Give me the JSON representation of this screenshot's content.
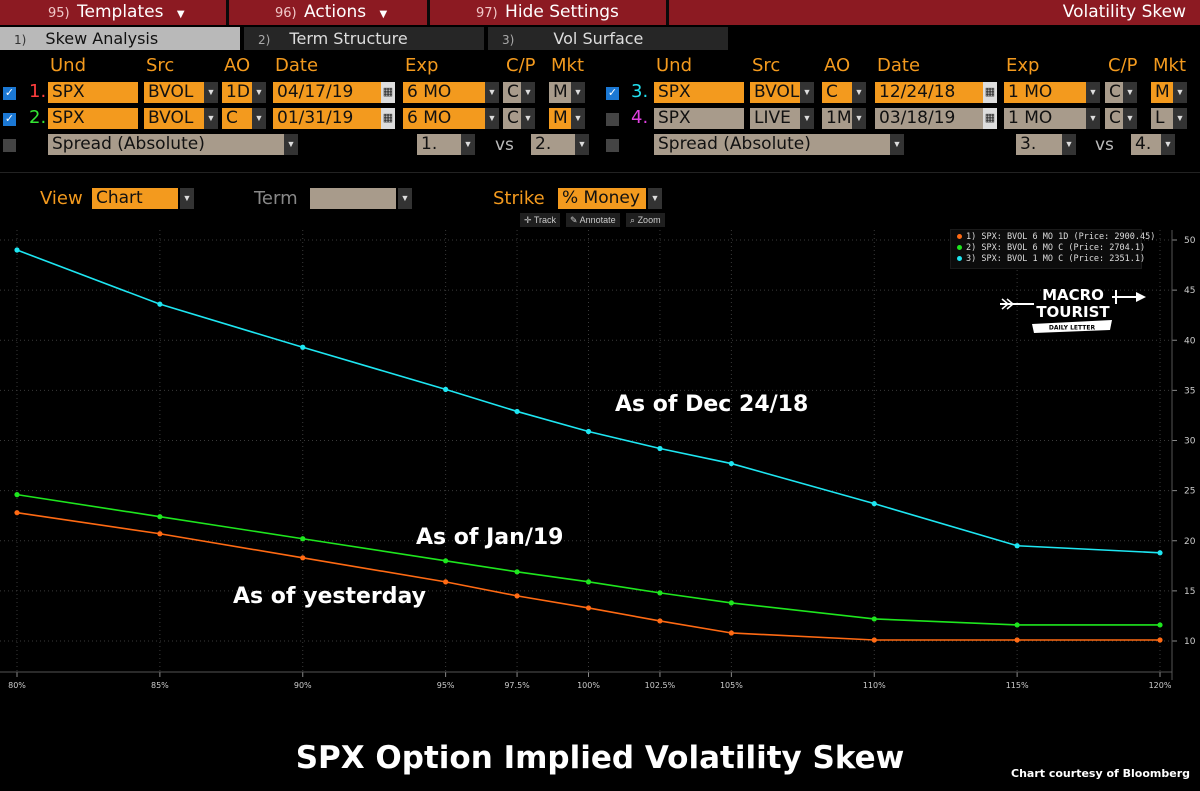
{
  "menubar": {
    "templates": {
      "num": "95)",
      "label": "Templates"
    },
    "actions": {
      "num": "96)",
      "label": "Actions"
    },
    "hide": {
      "num": "97)",
      "label": "Hide Settings"
    },
    "title": "Volatility Skew"
  },
  "tabs": [
    {
      "num": "1)",
      "label": "Skew Analysis"
    },
    {
      "num": "2)",
      "label": "Term Structure"
    },
    {
      "num": "3)",
      "label": "Vol Surface"
    }
  ],
  "headers": {
    "und": "Und",
    "src": "Src",
    "ao": "AO",
    "date": "Date",
    "exp": "Exp",
    "cp": "C/P",
    "mkt": "Mkt"
  },
  "rows": {
    "r1": {
      "num": "1.",
      "und": "SPX",
      "src": "BVOL",
      "ao": "1D",
      "date": "04/17/19",
      "exp": "6 MO",
      "cp": "C",
      "mkt": "M"
    },
    "r2": {
      "num": "2.",
      "und": "SPX",
      "src": "BVOL",
      "ao": "C",
      "date": "01/31/19",
      "exp": "6 MO",
      "cp": "C",
      "mkt": "M"
    },
    "r3": {
      "num": "3.",
      "und": "SPX",
      "src": "BVOL",
      "ao": "C",
      "date": "12/24/18",
      "exp": "1 MO",
      "cp": "C",
      "mkt": "M"
    },
    "r4": {
      "num": "4.",
      "und": "SPX",
      "src": "LIVE",
      "ao": "1M",
      "date": "03/18/19",
      "exp": "1 MO",
      "cp": "C",
      "mkt": "L"
    }
  },
  "spread_left": {
    "label": "Spread (Absolute)",
    "a": "1.",
    "vs": "vs",
    "b": "2."
  },
  "spread_right": {
    "label": "Spread (Absolute)",
    "a": "3.",
    "vs": "vs",
    "b": "4."
  },
  "view": {
    "view_label": "View",
    "view_value": "Chart",
    "term_label": "Term",
    "term_value": "",
    "strike_label": "Strike",
    "strike_value": "% Money"
  },
  "toolbar": {
    "track": "Track",
    "annotate": "Annotate",
    "zoom": "Zoom"
  },
  "logo": {
    "line1": "MACRO",
    "line2": "TOURIST",
    "line3": "DAILY LETTER"
  },
  "annotations": {
    "dec": "As of Dec 24/18",
    "jan": "As of Jan/19",
    "yesterday": "As of yesterday"
  },
  "title": "SPX Option Implied Volatility Skew",
  "credit": "Chart courtesy of Bloomberg",
  "colors": {
    "orange": "#f39a1e",
    "series1": "#ff6a13",
    "series2": "#1ee61e",
    "series3": "#1ee6f2",
    "row1": "#ff3d3d",
    "row2": "#34e634",
    "row3": "#22e0f0",
    "row4": "#e040e0",
    "menu": "#8c1a22"
  },
  "chart_data": {
    "type": "line",
    "x_categories": [
      "80%",
      "85%",
      "90%",
      "95%",
      "97.5%",
      "100%",
      "102.5%",
      "105%",
      "110%",
      "115%",
      "120%"
    ],
    "x_values": [
      80,
      85,
      90,
      95,
      97.5,
      100,
      102.5,
      105,
      110,
      115,
      120
    ],
    "xlim": [
      80,
      120
    ],
    "ylim": [
      6.5,
      51
    ],
    "y_ticks": [
      10,
      15,
      20,
      25,
      30,
      35,
      40,
      45,
      50
    ],
    "y_axis_side": "right",
    "grid": true,
    "legend_position": "top-right",
    "series": [
      {
        "name": "1) SPX: BVOL 6 MO 1D (Price: 2900.45)",
        "color": "#ff6a13",
        "values": [
          22.8,
          20.7,
          18.3,
          15.9,
          14.5,
          13.3,
          12.0,
          10.8,
          10.1,
          10.1,
          10.1
        ]
      },
      {
        "name": "2) SPX: BVOL 6 MO C (Price: 2704.1)",
        "color": "#1ee61e",
        "values": [
          24.6,
          22.4,
          20.2,
          18.0,
          16.9,
          15.9,
          14.8,
          13.8,
          12.2,
          11.6,
          11.6
        ]
      },
      {
        "name": "3) SPX: BVOL 1 MO C (Price: 2351.1)",
        "color": "#1ee6f2",
        "values": [
          49.0,
          43.6,
          39.3,
          35.1,
          32.9,
          30.9,
          29.2,
          27.7,
          23.7,
          19.5,
          18.8
        ]
      }
    ]
  }
}
